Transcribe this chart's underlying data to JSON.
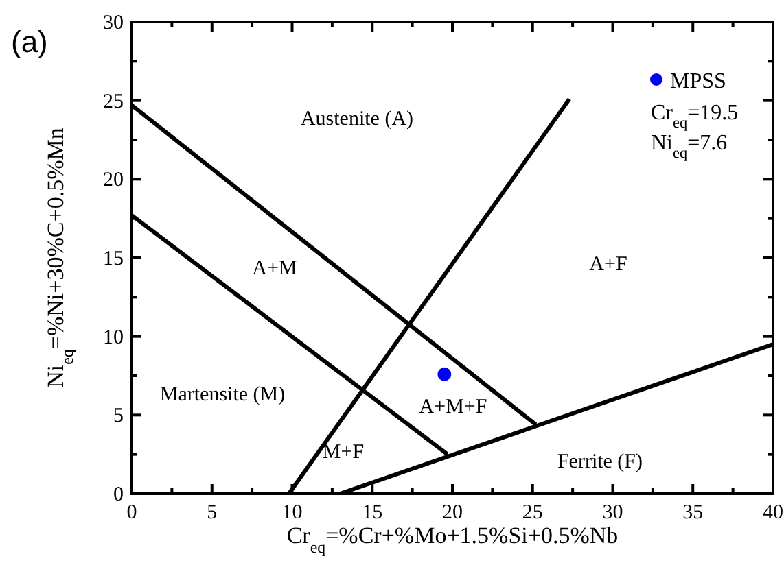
{
  "chart_data": {
    "type": "line",
    "xlabel": "Cr$_{eq}$=%Cr+%Mo+1.5%Si+0.5%Nb",
    "ylabel": "Ni$_{eq}$=%Ni+30%C+0.5%Mn",
    "xlim": [
      0,
      40
    ],
    "ylim": [
      0,
      30
    ],
    "xticks": [
      0,
      {
        "value": 2.5,
        "label": null
      },
      5,
      {
        "value": 7.5,
        "label": null
      },
      10,
      {
        "value": 12.5,
        "label": null
      },
      15,
      {
        "value": 17.5,
        "label": null
      },
      20,
      {
        "value": 22.5,
        "label": null
      },
      25,
      {
        "value": 27.5,
        "label": null
      },
      30,
      {
        "value": 32.5,
        "label": null
      },
      35,
      {
        "value": 37.5,
        "label": null
      },
      40
    ],
    "yticks": [
      0,
      {
        "value": 2.5,
        "label": null
      },
      5,
      {
        "value": 7.5,
        "label": null
      },
      10,
      {
        "value": 12.5,
        "label": null
      },
      15,
      {
        "value": 17.5,
        "label": null
      },
      20,
      {
        "value": 22.5,
        "label": null
      },
      25,
      {
        "value": 27.5,
        "label": null
      },
      30
    ],
    "grid": false,
    "legend": "top right",
    "marker": "none",
    "line_style": "solid",
    "series": [
      {
        "color": "#000000",
        "x": [
          0,
          25.2
        ],
        "values": [
          24.7,
          4.4
        ]
      },
      {
        "color": "#000000",
        "x": [
          0,
          19.7
        ],
        "values": [
          17.7,
          2.5
        ]
      },
      {
        "color": "#000000",
        "x": [
          9.8,
          27.3
        ],
        "values": [
          0,
          25.1
        ]
      },
      {
        "color": "#000000",
        "x": [
          13,
          40
        ],
        "values": [
          0,
          9.5
        ]
      },
      {
        "type": "scatter",
        "name": "MPSS",
        "color": "#0000ff",
        "marker": "circle",
        "x": [
          19.5
        ],
        "values": [
          7.6
        ]
      }
    ],
    "annotations": [
      "(a)",
      "Cr$_{eq}$=19.5",
      "Ni$_{eq}$=7.6",
      "Austenite (A)",
      "A+M",
      "A+F",
      "Martensite (M)",
      "A+M+F",
      "M+F",
      "Ferrite (F)"
    ]
  }
}
